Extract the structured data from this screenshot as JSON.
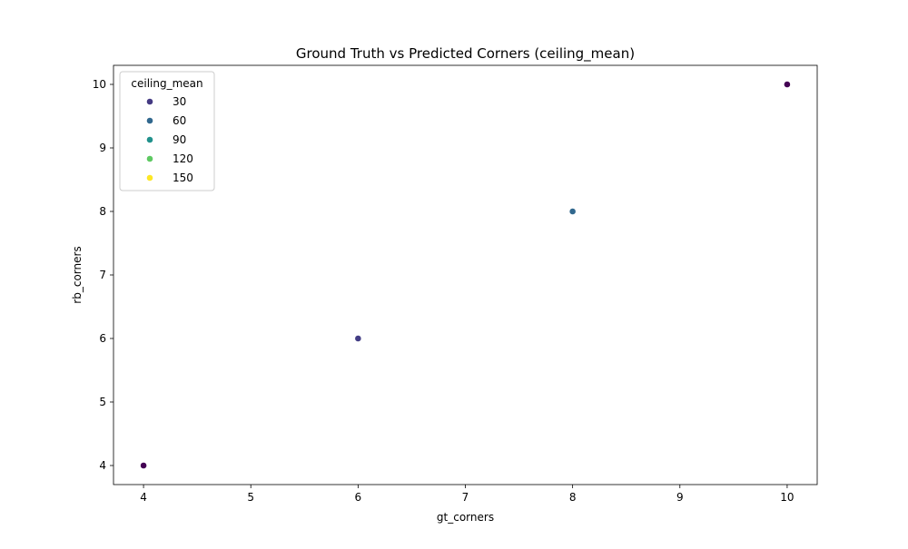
{
  "chart_data": {
    "type": "scatter",
    "title": "Ground Truth vs Predicted Corners (ceiling_mean)",
    "xlabel": "gt_corners",
    "ylabel": "rb_corners",
    "xlim": [
      3.72,
      10.28
    ],
    "ylim": [
      3.7,
      10.3
    ],
    "xticks": [
      4,
      5,
      6,
      7,
      8,
      9,
      10
    ],
    "yticks": [
      4,
      5,
      6,
      7,
      8,
      9,
      10
    ],
    "grid": false,
    "legend": {
      "title": "ceiling_mean",
      "placement": "upper-left",
      "entries": [
        {
          "label": "30",
          "color": "#443a83"
        },
        {
          "label": "60",
          "color": "#31688e"
        },
        {
          "label": "90",
          "color": "#21918c"
        },
        {
          "label": "120",
          "color": "#5ec962"
        },
        {
          "label": "150",
          "color": "#fde725"
        }
      ]
    },
    "points": [
      {
        "x": 4,
        "y": 4,
        "color": "#440154"
      },
      {
        "x": 6,
        "y": 6,
        "color": "#433e85"
      },
      {
        "x": 8,
        "y": 8,
        "color": "#31688e"
      },
      {
        "x": 10,
        "y": 10,
        "color": "#440154"
      }
    ]
  }
}
